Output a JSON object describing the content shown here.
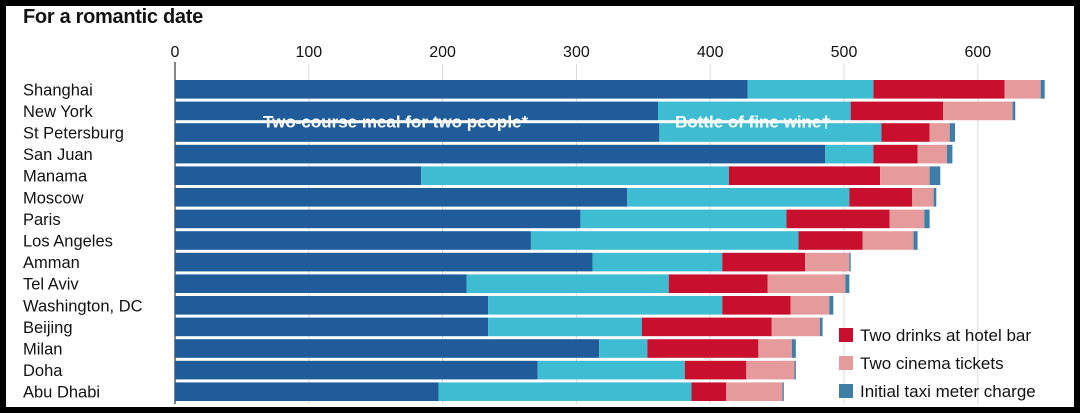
{
  "chart_data": {
    "type": "bar",
    "orientation": "horizontal",
    "stacked": true,
    "title": "For a romantic date",
    "xlabel": "",
    "ylabel": "",
    "xlim": [
      0,
      650
    ],
    "xticks": [
      0,
      100,
      200,
      300,
      400,
      500,
      600
    ],
    "grid": true,
    "legend_position": "bottom-right",
    "categories": [
      "Shanghai",
      "New York",
      "St Petersburg",
      "San Juan",
      "Manama",
      "Moscow",
      "Paris",
      "Los Angeles",
      "Amman",
      "Tel Aviv",
      "Washington, DC",
      "Beijing",
      "Milan",
      "Doha",
      "Abu Dhabi"
    ],
    "series": [
      {
        "name": "Two-course meal for two people*",
        "color": "#1f5c99",
        "values": [
          428,
          361,
          362,
          486,
          184,
          338,
          303,
          266,
          312,
          218,
          234,
          234,
          317,
          271,
          197
        ]
      },
      {
        "name": "Bottle of fine wine†",
        "color": "#3ebcd2",
        "values": [
          94,
          144,
          166,
          36,
          230,
          166,
          154,
          200,
          97,
          151,
          175,
          115,
          36,
          110,
          189
        ]
      },
      {
        "name": "Two drinks at hotel bar",
        "color": "#c8102e",
        "values": [
          98,
          69,
          36,
          33,
          113,
          47,
          77,
          48,
          62,
          74,
          51,
          97,
          83,
          46,
          26
        ]
      },
      {
        "name": "Two cinema tickets",
        "color": "#e59a9c",
        "values": [
          27,
          52,
          15,
          22,
          37,
          16,
          26,
          38,
          33,
          58,
          29,
          36,
          25,
          36,
          42
        ]
      },
      {
        "name": "Initial taxi meter charge",
        "color": "#3d7fa6",
        "values": [
          3,
          2,
          4,
          4,
          8,
          2,
          4,
          3,
          1,
          3,
          3,
          2,
          3,
          1,
          1
        ]
      }
    ],
    "annotations": [
      {
        "text": "Two-course meal for two people*",
        "series": 0
      },
      {
        "text": "Bottle of fine wine†",
        "series": 1
      }
    ],
    "legend": [
      {
        "label": "Two drinks at hotel bar",
        "series": 2
      },
      {
        "label": "Two cinema tickets",
        "series": 3
      },
      {
        "label": "Initial taxi meter charge",
        "series": 4
      }
    ]
  }
}
